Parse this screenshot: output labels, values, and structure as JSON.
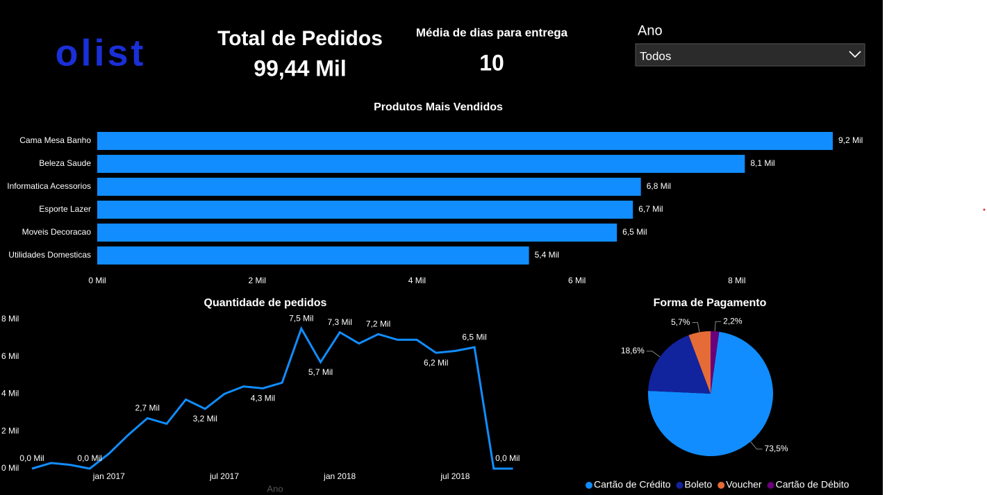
{
  "header": {
    "logo": "olist",
    "kpi_orders_title": "Total de Pedidos",
    "kpi_orders_value": "99,44 Mil",
    "kpi_days_title": "Média de dias para entrega",
    "kpi_days_value": "10",
    "slicer_title": "Ano",
    "slicer_value": "Todos"
  },
  "chart_data": [
    {
      "type": "hbar",
      "title": "Produtos Mais Vendidos",
      "categories": [
        "Cama Mesa Banho",
        "Beleza Saude",
        "Informatica Acessorios",
        "Esporte Lazer",
        "Moveis Decoracao",
        "Utilidades Domesticas"
      ],
      "values": [
        9.2,
        8.1,
        6.8,
        6.7,
        6.5,
        5.4
      ],
      "value_labels": [
        "9,2 Mil",
        "8,1 Mil",
        "6,8 Mil",
        "6,7 Mil",
        "6,5 Mil",
        "5,4 Mil"
      ],
      "color": "#118DFF",
      "xlim": [
        0,
        9.6
      ],
      "xticks": [
        {
          "value": 0,
          "label": "0 Mil"
        },
        {
          "value": 2,
          "label": "2 Mil"
        },
        {
          "value": 4,
          "label": "4 Mil"
        },
        {
          "value": 6,
          "label": "6 Mil"
        },
        {
          "value": 8,
          "label": "8 Mil"
        }
      ]
    },
    {
      "type": "line",
      "title": "Quantidade de pedidos",
      "x_label": "Ano",
      "categories": [
        null,
        null,
        null,
        null,
        "jan 2017",
        null,
        null,
        null,
        null,
        null,
        "jul 2017",
        null,
        null,
        null,
        null,
        null,
        "jan 2018",
        null,
        null,
        null,
        null,
        null,
        "jul 2018",
        null,
        null,
        null
      ],
      "values": [
        0.0,
        0.3,
        0.2,
        0.0,
        0.8,
        1.8,
        2.7,
        2.4,
        3.7,
        3.2,
        4.0,
        4.4,
        4.3,
        4.6,
        7.5,
        5.7,
        7.3,
        6.7,
        7.2,
        6.9,
        6.9,
        6.2,
        6.3,
        6.5,
        0.0,
        0.0
      ],
      "value_labels": [
        "0,0 Mil",
        null,
        null,
        "0,0 Mil",
        null,
        null,
        "2,7 Mil",
        null,
        null,
        "3,2 Mil",
        null,
        null,
        "4,3 Mil",
        null,
        "7,5 Mil",
        "5,7 Mil",
        "7,3 Mil",
        null,
        "7,2 Mil",
        null,
        null,
        "6,2 Mil",
        null,
        "6,5 Mil",
        "0,0 Mil",
        null
      ],
      "color": "#118DFF",
      "ylim": [
        0,
        8.2
      ],
      "yticks": [
        {
          "value": 0,
          "label": "0 Mil"
        },
        {
          "value": 2,
          "label": "2 Mil"
        },
        {
          "value": 4,
          "label": "4 Mil"
        },
        {
          "value": 6,
          "label": "6 Mil"
        },
        {
          "value": 8,
          "label": "8 Mil"
        }
      ]
    },
    {
      "type": "pie",
      "title": "Forma de Pagamento",
      "series": [
        {
          "name": "Cartão de Crédito",
          "color": "#118DFF",
          "value": 73.5,
          "value_label": "73,5%"
        },
        {
          "name": "Boleto",
          "color": "#12239E",
          "value": 18.6,
          "value_label": "18,6%"
        },
        {
          "name": "Voucher",
          "color": "#E66C37",
          "value": 5.7,
          "value_label": "5,7%"
        },
        {
          "name": "Cartão de Débito",
          "color": "#6B007B",
          "value": 2.2,
          "value_label": "2,2%"
        }
      ]
    }
  ]
}
